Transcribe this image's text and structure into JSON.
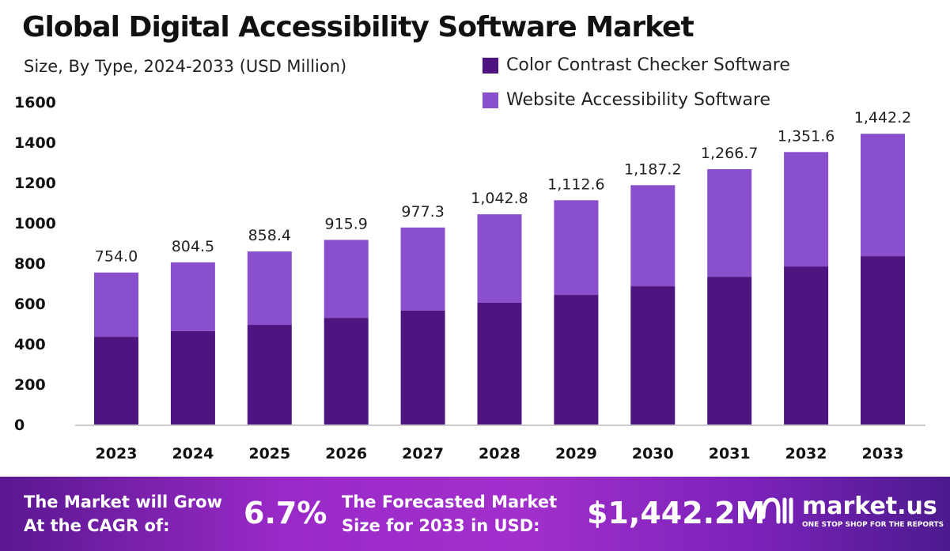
{
  "chart_data": {
    "type": "bar",
    "stacked": true,
    "title": "Global Digital Accessibility Software Market",
    "subtitle": "Size, By Type, 2024-2033 (USD Million)",
    "categories": [
      "2023",
      "2024",
      "2025",
      "2026",
      "2027",
      "2028",
      "2029",
      "2030",
      "2031",
      "2032",
      "2033"
    ],
    "series": [
      {
        "name": "Color Contrast Checker Software",
        "color": "#4e1580",
        "values": [
          435,
          463,
          494,
          529,
          565,
          604,
          643,
          686,
          733,
          784,
          835
        ]
      },
      {
        "name": "Website Accessibility Software",
        "color": "#8a4fcc",
        "values": [
          319,
          341.5,
          364.4,
          386.9,
          412.3,
          438.8,
          469.6,
          501.2,
          533.7,
          567.6,
          607.2
        ]
      }
    ],
    "totals": [
      754.0,
      804.5,
      858.4,
      915.9,
      977.3,
      1042.8,
      1112.6,
      1187.2,
      1266.7,
      1351.6,
      1442.2
    ],
    "total_labels": [
      "754.0",
      "804.5",
      "858.4",
      "915.9",
      "977.3",
      "1,042.8",
      "1,112.6",
      "1,187.2",
      "1,266.7",
      "1,351.6",
      "1,442.2"
    ],
    "yticks": [
      0,
      200,
      400,
      600,
      800,
      1000,
      1200,
      1400,
      1600
    ],
    "ylim": [
      0,
      1600
    ],
    "xlabel": "",
    "ylabel": "",
    "legend": "top-right",
    "grid": false
  },
  "footer": {
    "cagr_label_1": "The Market will Grow",
    "cagr_label_2": "At the CAGR of:",
    "cagr_value": "6.7%",
    "forecast_label_1": "The Forecasted Market",
    "forecast_label_2": "Size for 2033 in USD:",
    "forecast_value": "$1,442.2M",
    "brand": "market.us",
    "tagline": "ONE STOP SHOP FOR THE REPORTS"
  }
}
